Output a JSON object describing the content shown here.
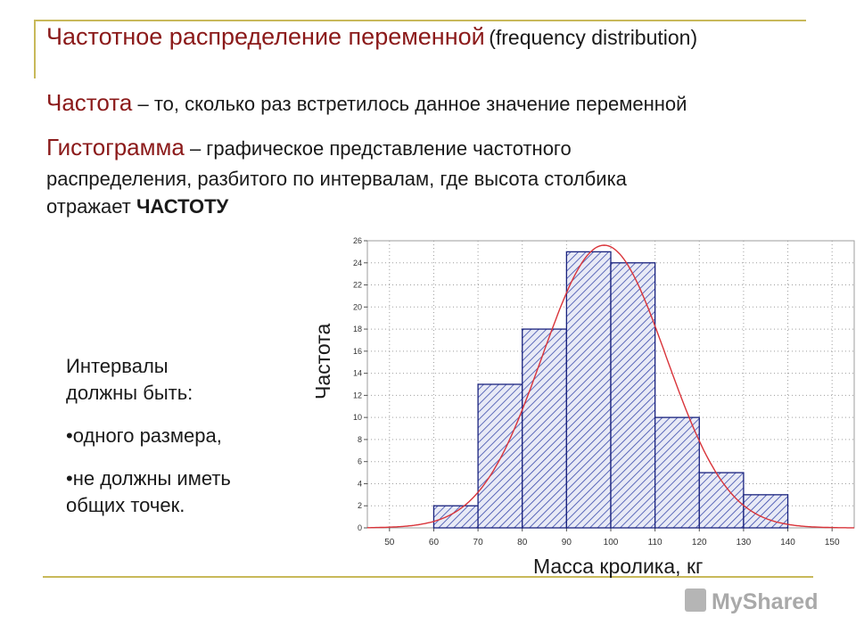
{
  "header": {
    "title_main": "Частотное распределение переменной",
    "title_sub": "(frequency distribution)"
  },
  "definitions": {
    "frequency_term": "Частота",
    "frequency_text": " – то, сколько раз встретилось данное значение переменной",
    "histogram_term": "Гистограмма",
    "histogram_text_line1": " – графическое представление частотного",
    "histogram_text_line2": "распределения, разбитого по интервалам, где высота столбика",
    "histogram_text_line3_start": "отражает ",
    "histogram_text_line3_bold": "ЧАСТОТУ"
  },
  "note": {
    "heading_line1": "Интервалы",
    "heading_line2": "должны быть:",
    "bullet1": "•одного размера,",
    "bullet2_line1": "•не должны иметь",
    "bullet2_line2": "общих точек."
  },
  "watermark": {
    "text": "MyShared"
  },
  "colors": {
    "title": "#8b1a1a",
    "bar_stroke": "#1a237e",
    "hatch": "#3949ab",
    "curve": "#d9343a",
    "rule": "#c8b95a"
  },
  "chart_data": {
    "type": "bar",
    "ylabel": "Частота",
    "xlabel": "Масса кролика, кг",
    "xticks": [
      50,
      60,
      70,
      80,
      90,
      100,
      110,
      120,
      130,
      140,
      150
    ],
    "yticks": [
      0,
      2,
      4,
      6,
      8,
      10,
      12,
      14,
      16,
      18,
      20,
      22,
      24,
      26
    ],
    "xlim": [
      45,
      155
    ],
    "ylim": [
      0,
      26
    ],
    "bins": [
      {
        "from": 60,
        "to": 70,
        "value": 2
      },
      {
        "from": 70,
        "to": 80,
        "value": 13
      },
      {
        "from": 80,
        "to": 90,
        "value": 18
      },
      {
        "from": 90,
        "to": 100,
        "value": 25
      },
      {
        "from": 100,
        "to": 110,
        "value": 24
      },
      {
        "from": 110,
        "to": 120,
        "value": 10
      },
      {
        "from": 120,
        "to": 130,
        "value": 5
      },
      {
        "from": 130,
        "to": 140,
        "value": 3
      }
    ],
    "curve": {
      "kind": "normal",
      "mean": 98.5,
      "sd": 14,
      "peak": 25.6
    },
    "grid": true,
    "bar_fill": "hatched"
  }
}
